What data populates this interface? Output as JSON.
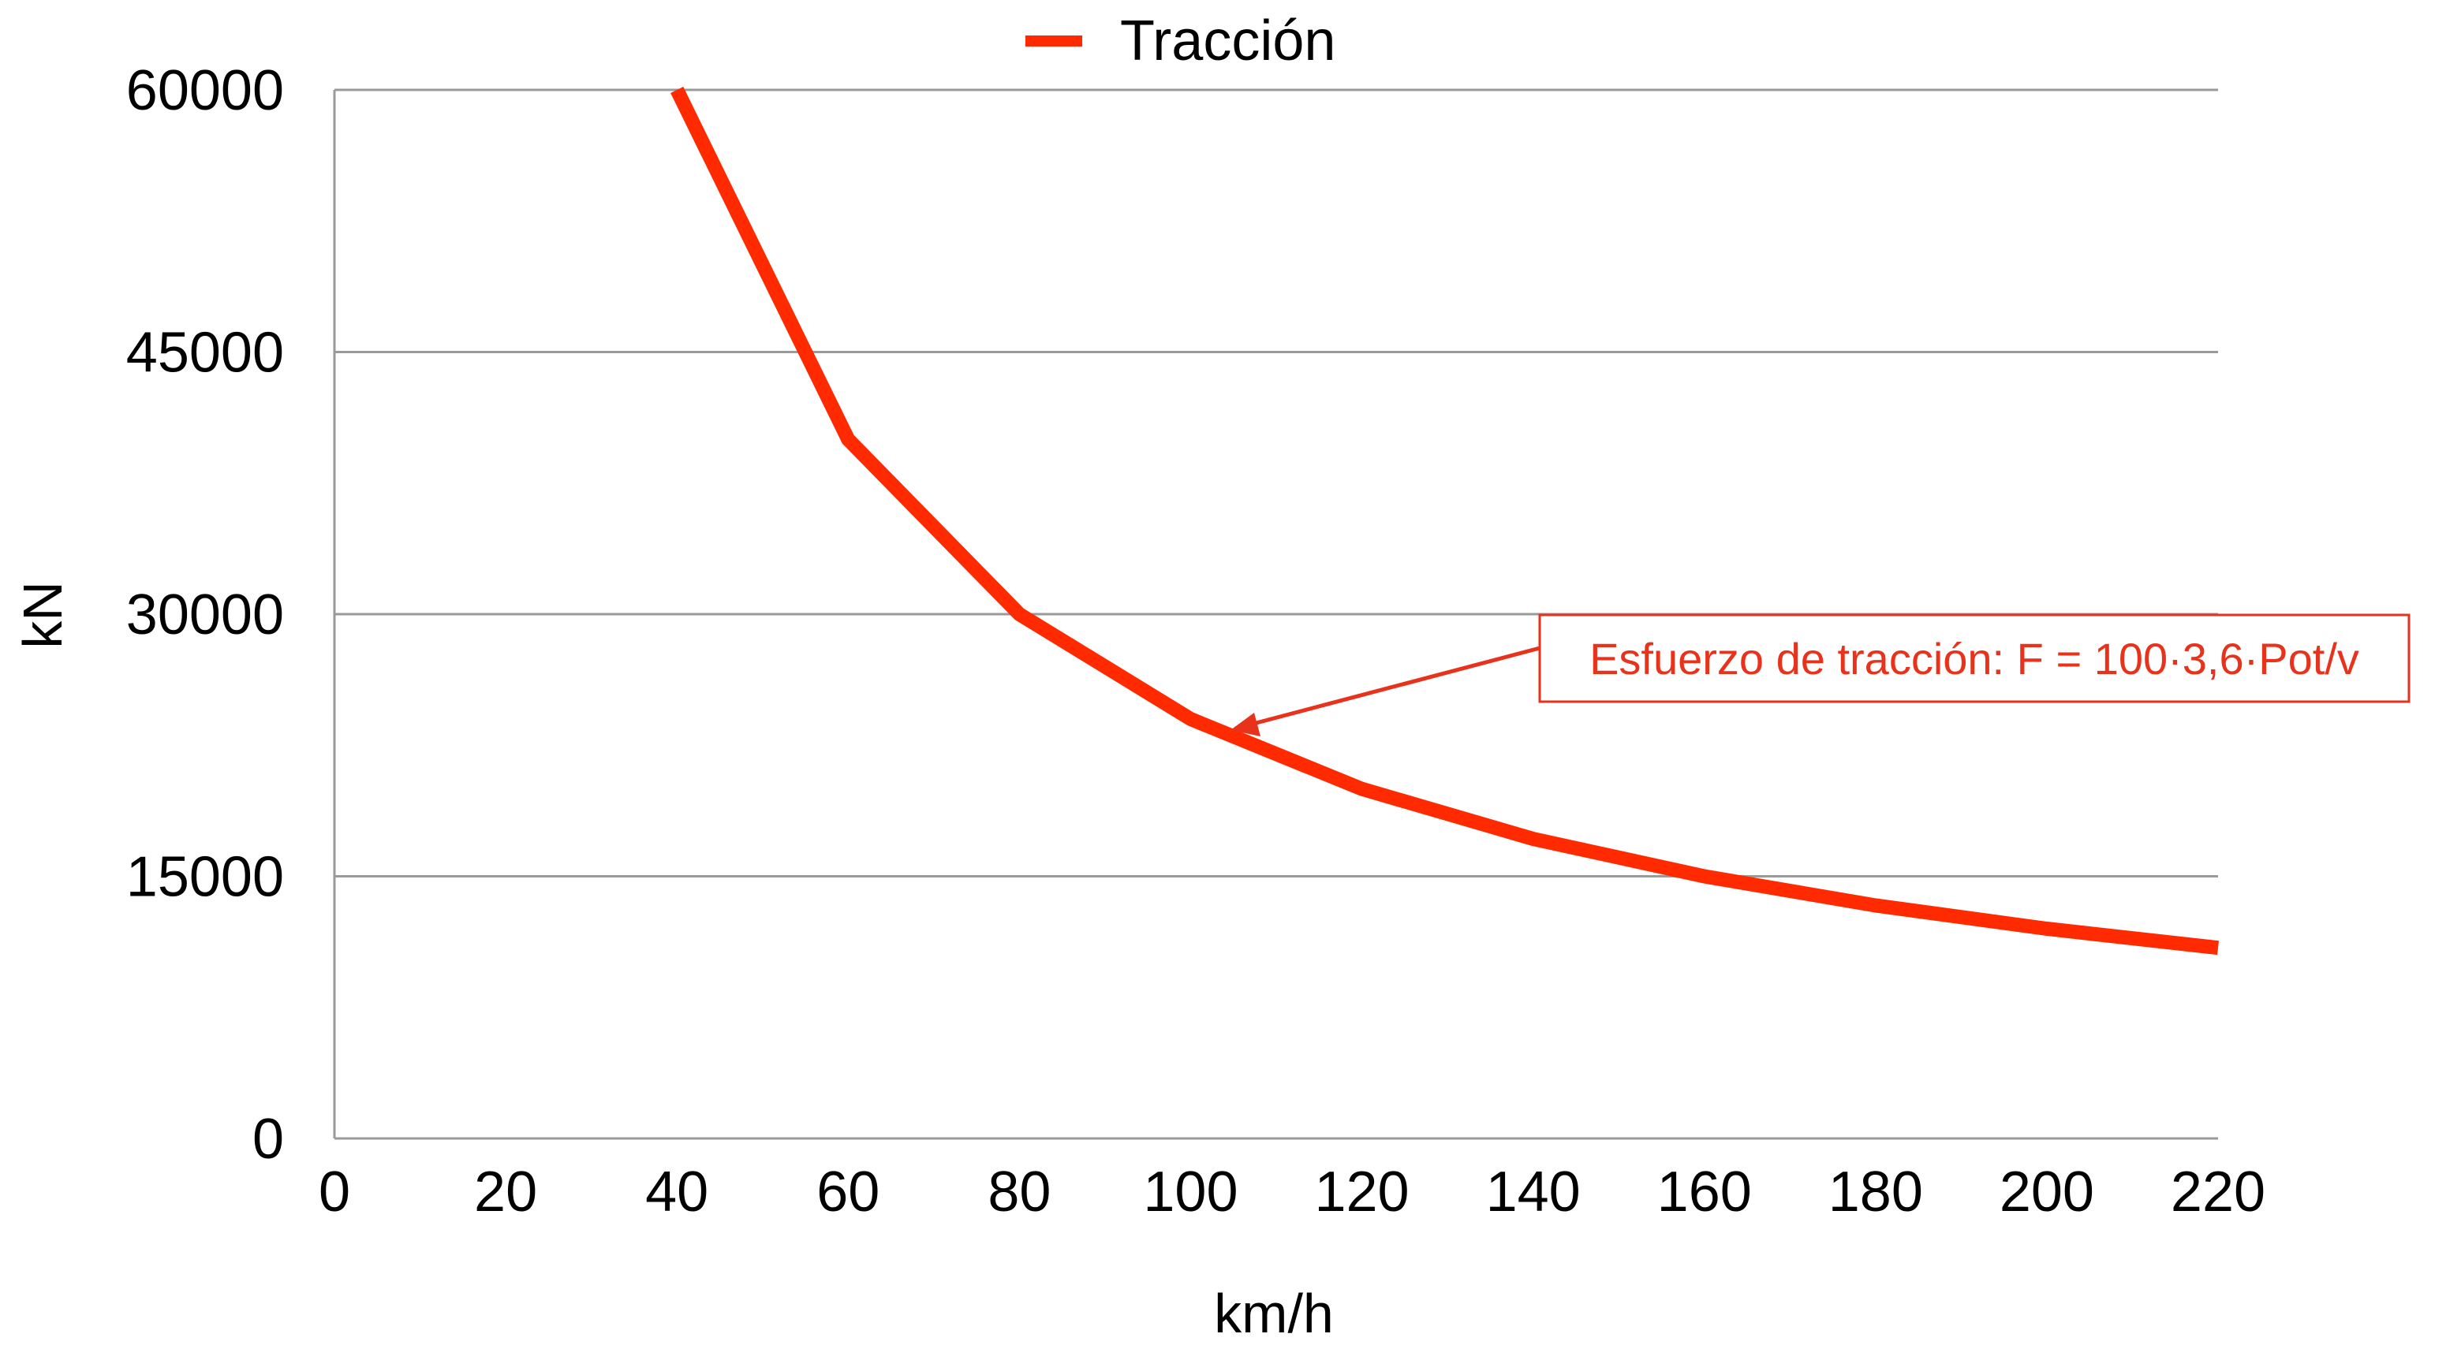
{
  "chart_data": {
    "type": "line",
    "title": "",
    "xlabel": "km/h",
    "ylabel": "kN",
    "xlim": [
      0,
      220
    ],
    "ylim": [
      0,
      60000
    ],
    "x_ticks": [
      "0",
      "20",
      "40",
      "60",
      "80",
      "100",
      "120",
      "140",
      "160",
      "180",
      "200",
      "220"
    ],
    "y_ticks": [
      "0",
      "15000",
      "30000",
      "45000",
      "60000"
    ],
    "grid": "horizontal",
    "legend_position": "top-center",
    "series": [
      {
        "name": "Tracción",
        "color": "#ff2a00",
        "x": [
          40,
          60,
          80,
          100,
          120,
          140,
          160,
          180,
          200,
          220
        ],
        "values": [
          60000,
          40000,
          30000,
          24000,
          20000,
          17143,
          15000,
          13333,
          12000,
          10909
        ]
      }
    ],
    "annotation": {
      "text": "Esfuerzo de tracción: F = 100·3,6·Pot/v",
      "color": "#e8321c",
      "points_to_x": 105,
      "points_to_y": 23000
    }
  }
}
